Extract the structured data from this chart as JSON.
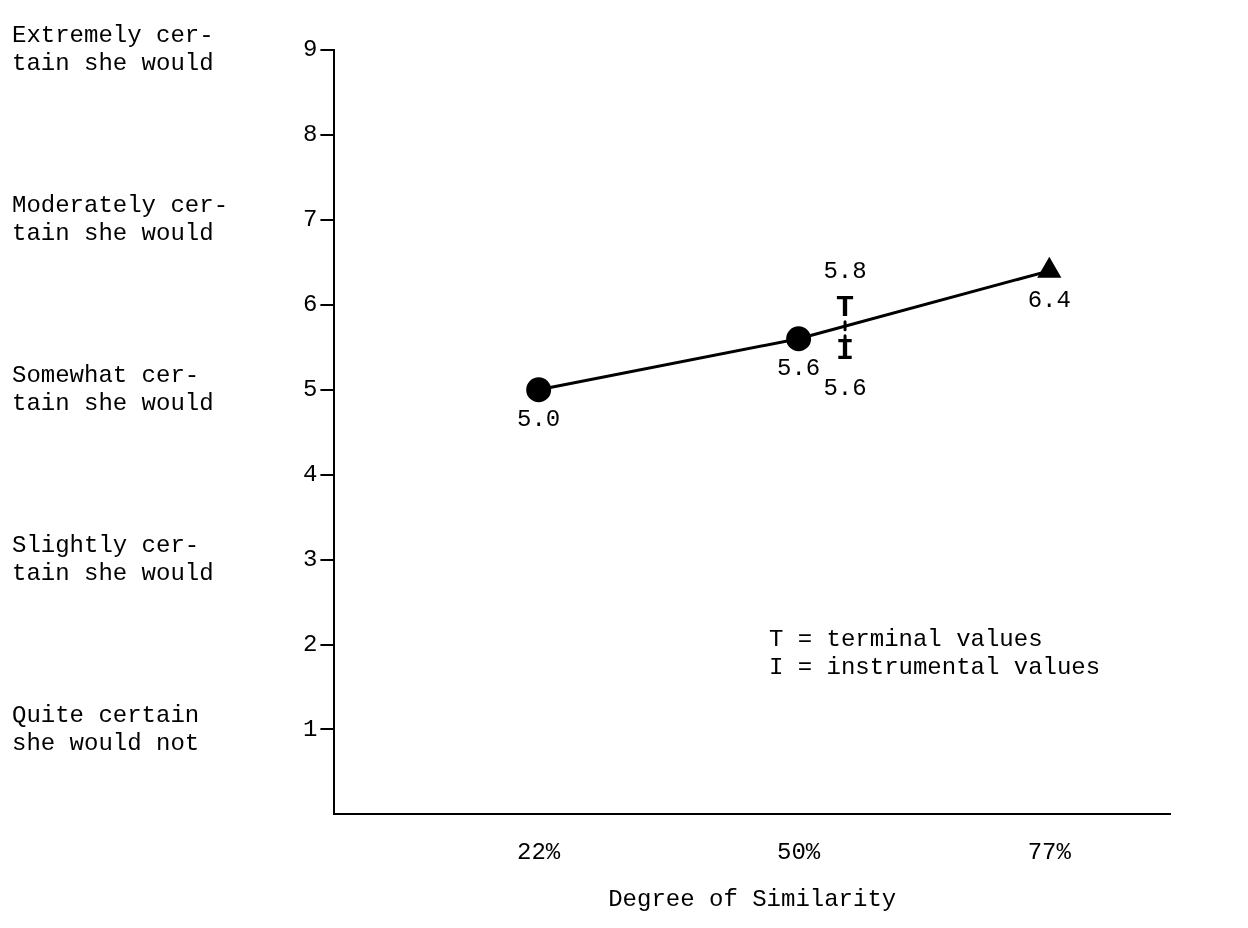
{
  "chart_data": {
    "type": "line",
    "xlabel": "Degree of Similarity",
    "xlim": [
      0,
      90
    ],
    "xticks": [
      {
        "value": 22,
        "label": "22%"
      },
      {
        "value": 50,
        "label": "50%"
      },
      {
        "value": 77,
        "label": "77%"
      }
    ],
    "ylim": [
      0,
      9
    ],
    "yticks": [
      1,
      2,
      3,
      4,
      5,
      6,
      7,
      8,
      9
    ],
    "series": [
      {
        "x": [
          22,
          50,
          77
        ],
        "values": [
          5.0,
          5.6,
          6.4
        ],
        "color": "#000000",
        "marker": "none"
      },
      {
        "type": "scatter",
        "x": [
          22
        ],
        "values": [
          5.0
        ],
        "color": "#000000",
        "marker": "circle",
        "value_labels": [
          "5.0"
        ]
      },
      {
        "type": "scatter",
        "x": [
          50
        ],
        "values": [
          5.6
        ],
        "color": "#000000",
        "marker": "circle",
        "value_labels": [
          "5.6"
        ]
      },
      {
        "type": "scatter",
        "x": [
          77
        ],
        "values": [
          6.4
        ],
        "color": "#000000",
        "marker": "triangle",
        "value_labels": [
          "6.4"
        ]
      },
      {
        "x": [
          55,
          55
        ],
        "values": [
          5.8,
          5.6
        ],
        "color": "#000000",
        "marker": "none",
        "line_style": "dashed",
        "value_labels": [
          "5.8",
          "5.6"
        ]
      }
    ],
    "annotations": [
      {
        "text": "T",
        "x": 55,
        "y": 5.8
      },
      {
        "text": "I",
        "x": 55,
        "y": 5.6
      },
      "T = terminal values\nI = instrumental values",
      "Extremely cer-\ntain she would",
      "Moderately cer-\ntain she would",
      "Somewhat cer-\ntain she would",
      "Slightly cer-\ntain she would",
      "Quite certain\nshe would not"
    ],
    "grid": false,
    "legend": false
  }
}
